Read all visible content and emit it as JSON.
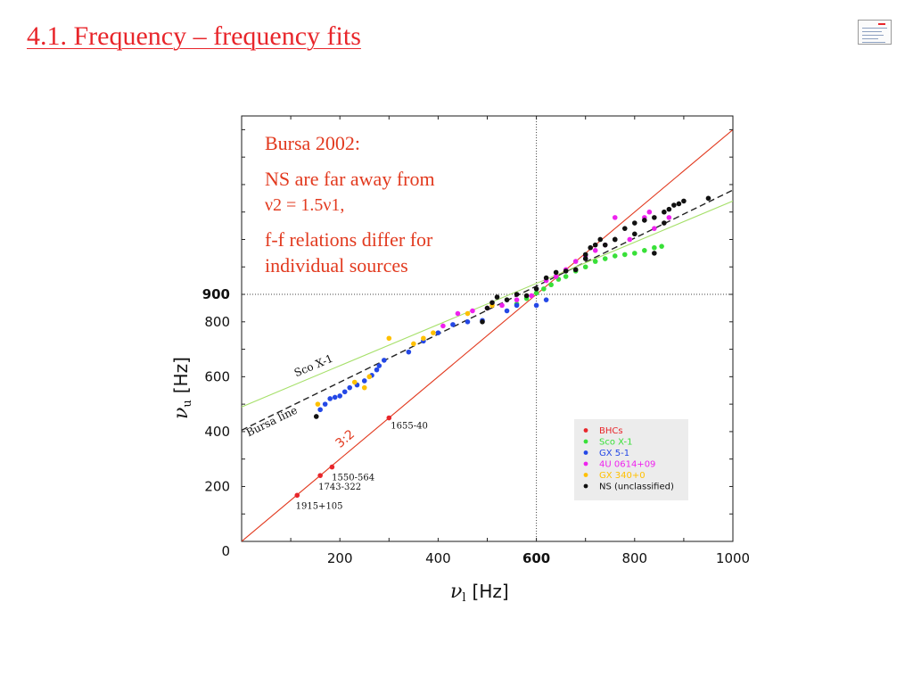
{
  "slide": {
    "title": "4.1. Frequency – frequency fits"
  },
  "annotation": {
    "heading": "Bursa 2002:",
    "line1": "NS are far away from",
    "line2": "ν2 = 1.5ν1,",
    "line3": "f-f relations differ for",
    "line4": "individual sources"
  },
  "chart_data": {
    "type": "scatter",
    "xlabel_symbol": "ν",
    "xlabel_sub": "l",
    "xlabel_unit": "[Hz]",
    "ylabel_symbol": "ν",
    "ylabel_sub": "u",
    "ylabel_unit": "[Hz]",
    "xlim": [
      0,
      1000
    ],
    "ylim": [
      0,
      1550
    ],
    "x_ticks": [
      {
        "value": 200,
        "label": "200",
        "bold": false
      },
      {
        "value": 400,
        "label": "400",
        "bold": false
      },
      {
        "value": 600,
        "label": "600",
        "bold": true
      },
      {
        "value": 800,
        "label": "800",
        "bold": false
      },
      {
        "value": 1000,
        "label": "1000",
        "bold": false
      }
    ],
    "y_ticks": [
      {
        "value": 0,
        "label": "0",
        "bold": false
      },
      {
        "value": 200,
        "label": "200",
        "bold": false
      },
      {
        "value": 400,
        "label": "400",
        "bold": false
      },
      {
        "value": 600,
        "label": "600",
        "bold": false
      },
      {
        "value": 800,
        "label": "800",
        "bold": false
      },
      {
        "value": 900,
        "label": "900",
        "bold": true
      }
    ],
    "reference_lines": {
      "vertical_x": 600,
      "horizontal_y": 900
    },
    "fit_lines": [
      {
        "name": "3:2",
        "label": "3:2",
        "color": "#e23a1f",
        "style": "solid",
        "points": [
          [
            0,
            0
          ],
          [
            1000,
            1500
          ]
        ]
      },
      {
        "name": "Bursa line",
        "label": "Bursa line",
        "color": "#222222",
        "style": "dashed",
        "points": [
          [
            0,
            405
          ],
          [
            1000,
            1280
          ]
        ]
      },
      {
        "name": "Sco X-1",
        "label": "Sco X-1",
        "color": "#a6e06a",
        "style": "solid",
        "points": [
          [
            0,
            490
          ],
          [
            1000,
            1240
          ]
        ]
      }
    ],
    "source_labels": [
      {
        "text": "1655-40",
        "x": 300,
        "y": 450
      },
      {
        "text": "1550-564",
        "x": 180,
        "y": 275
      },
      {
        "text": "1743-322",
        "x": 160,
        "y": 240
      },
      {
        "text": "1915+105",
        "x": 110,
        "y": 170
      }
    ],
    "legend_position": "bottom-right",
    "series": [
      {
        "name": "BHCs",
        "color": "#e8262b",
        "points": [
          [
            113,
            168
          ],
          [
            160,
            240
          ],
          [
            184,
            271
          ],
          [
            300,
            450
          ]
        ]
      },
      {
        "name": "Sco X-1",
        "color": "#38e038",
        "points": [
          [
            560,
            865
          ],
          [
            580,
            885
          ],
          [
            600,
            905
          ],
          [
            615,
            920
          ],
          [
            630,
            935
          ],
          [
            645,
            955
          ],
          [
            660,
            965
          ],
          [
            680,
            985
          ],
          [
            700,
            1000
          ],
          [
            720,
            1020
          ],
          [
            740,
            1030
          ],
          [
            760,
            1040
          ],
          [
            780,
            1045
          ],
          [
            800,
            1050
          ],
          [
            820,
            1060
          ],
          [
            840,
            1070
          ],
          [
            855,
            1075
          ]
        ]
      },
      {
        "name": "GX 5-1",
        "color": "#2448e6",
        "points": [
          [
            160,
            480
          ],
          [
            170,
            500
          ],
          [
            180,
            520
          ],
          [
            190,
            525
          ],
          [
            200,
            530
          ],
          [
            210,
            545
          ],
          [
            220,
            560
          ],
          [
            235,
            570
          ],
          [
            250,
            585
          ],
          [
            265,
            605
          ],
          [
            275,
            625
          ],
          [
            280,
            640
          ],
          [
            290,
            660
          ],
          [
            340,
            690
          ],
          [
            370,
            730
          ],
          [
            400,
            760
          ],
          [
            430,
            790
          ],
          [
            460,
            800
          ],
          [
            490,
            805
          ],
          [
            540,
            840
          ],
          [
            560,
            860
          ],
          [
            600,
            860
          ],
          [
            620,
            880
          ]
        ]
      },
      {
        "name": "4U 0614+09",
        "color": "#ee22ee",
        "points": [
          [
            410,
            785
          ],
          [
            440,
            830
          ],
          [
            470,
            840
          ],
          [
            500,
            850
          ],
          [
            530,
            860
          ],
          [
            560,
            880
          ],
          [
            590,
            895
          ],
          [
            620,
            950
          ],
          [
            640,
            965
          ],
          [
            660,
            990
          ],
          [
            680,
            1020
          ],
          [
            700,
            1040
          ],
          [
            720,
            1060
          ],
          [
            740,
            1080
          ],
          [
            760,
            1180
          ],
          [
            790,
            1100
          ],
          [
            820,
            1180
          ],
          [
            830,
            1200
          ],
          [
            840,
            1140
          ],
          [
            870,
            1180
          ]
        ]
      },
      {
        "name": "GX 340+0",
        "color": "#ffc000",
        "points": [
          [
            155,
            500
          ],
          [
            230,
            580
          ],
          [
            250,
            560
          ],
          [
            260,
            600
          ],
          [
            300,
            740
          ],
          [
            350,
            720
          ],
          [
            370,
            740
          ],
          [
            390,
            760
          ],
          [
            460,
            830
          ],
          [
            510,
            860
          ]
        ]
      },
      {
        "name": "NS (unclassified)",
        "color": "#111111",
        "points": [
          [
            152,
            455
          ],
          [
            490,
            800
          ],
          [
            500,
            850
          ],
          [
            510,
            870
          ],
          [
            520,
            890
          ],
          [
            540,
            880
          ],
          [
            560,
            900
          ],
          [
            580,
            895
          ],
          [
            600,
            920
          ],
          [
            620,
            960
          ],
          [
            640,
            980
          ],
          [
            660,
            985
          ],
          [
            680,
            990
          ],
          [
            700,
            1030
          ],
          [
            710,
            1070
          ],
          [
            720,
            1080
          ],
          [
            740,
            1080
          ],
          [
            760,
            1100
          ],
          [
            780,
            1140
          ],
          [
            800,
            1160
          ],
          [
            820,
            1170
          ],
          [
            840,
            1180
          ],
          [
            860,
            1200
          ],
          [
            870,
            1210
          ],
          [
            880,
            1225
          ],
          [
            900,
            1240
          ],
          [
            950,
            1250
          ],
          [
            700,
            1045
          ],
          [
            730,
            1100
          ],
          [
            760,
            1100
          ],
          [
            800,
            1120
          ],
          [
            840,
            1050
          ],
          [
            860,
            1160
          ],
          [
            890,
            1230
          ]
        ]
      }
    ]
  }
}
